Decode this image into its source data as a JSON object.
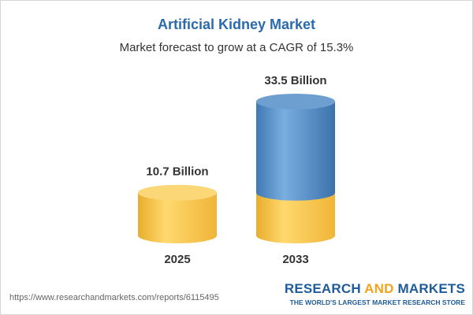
{
  "header": {
    "title": "Artificial Kidney Market",
    "subtitle": "Market forecast to grow at a CAGR of 15.3%"
  },
  "chart_data": {
    "type": "bar",
    "categories": [
      "2025",
      "2033"
    ],
    "values": [
      10.7,
      33.5
    ],
    "value_labels": [
      "10.7 Billion",
      "33.5 Billion"
    ],
    "title": "Artificial Kidney Market",
    "subtitle": "Market forecast to grow at a CAGR of 15.3%",
    "ylim": [
      0,
      33.5
    ],
    "grid": false,
    "colors": {
      "base": "#f5c34a",
      "growth": "#4a86c2"
    }
  },
  "footer": {
    "source_url": "https://www.researchandmarkets.com/reports/6115495",
    "brand_research": "RESEARCH",
    "brand_and": "AND",
    "brand_markets": "MARKETS",
    "brand_tagline": "THE WORLD'S LARGEST MARKET RESEARCH STORE"
  }
}
